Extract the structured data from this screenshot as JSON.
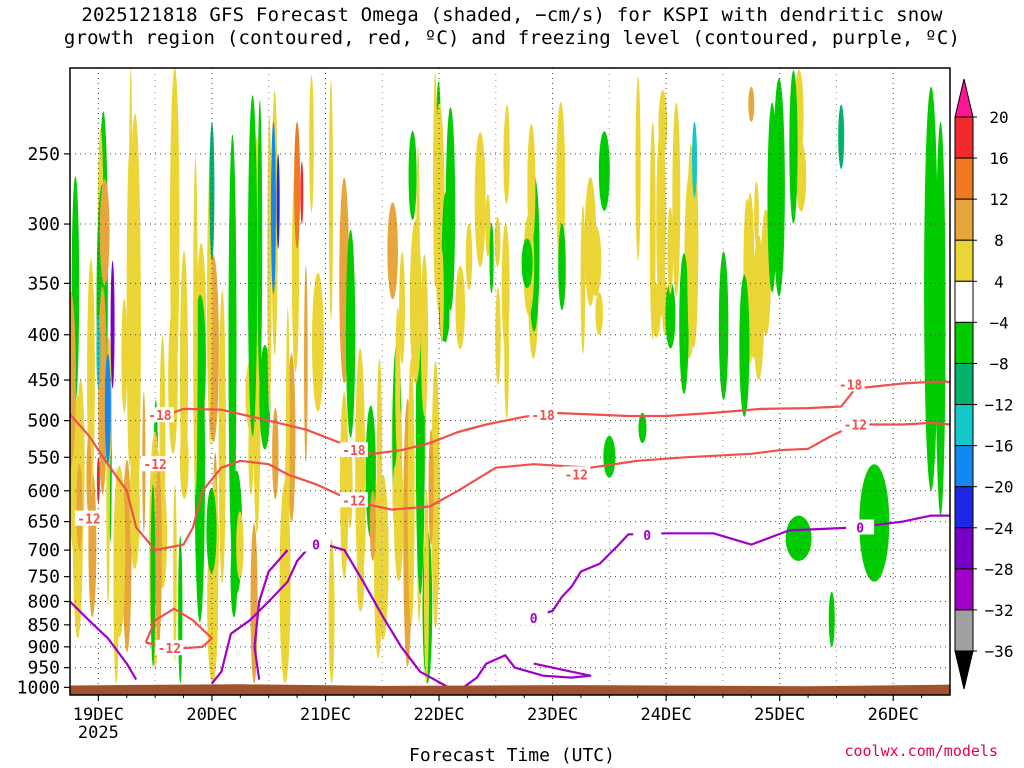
{
  "title_line1": "2025121818 GFS Forecast Omega (shaded, −cm/s) for KSPI with dendritic snow",
  "title_line2": "growth region (contoured, red, ºC) and freezing level (contoured, purple, ºC)",
  "credit": "coolwx.com/models",
  "chart_data": {
    "type": "heatmap",
    "title": "2025121818 GFS Forecast Omega (shaded, −cm/s) for KSPI with dendritic snow growth region (contoured, red, ºC) and freezing level (contoured, purple, ºC)",
    "xlabel": "Forecast Time (UTC)",
    "ylabel": "",
    "x_ticks": [
      "19DEC",
      "20DEC",
      "21DEC",
      "22DEC",
      "23DEC",
      "24DEC",
      "25DEC",
      "26DEC"
    ],
    "x_year_label": "2025",
    "x_range_hours": [
      -6,
      180
    ],
    "y_ticks": [
      250,
      300,
      350,
      400,
      450,
      500,
      550,
      600,
      650,
      700,
      750,
      800,
      850,
      900,
      950,
      1000
    ],
    "y_range_hPa": [
      200,
      1020
    ],
    "colorbar": {
      "labels": [
        20,
        16,
        12,
        8,
        4,
        -4,
        -8,
        -12,
        -16,
        -20,
        -24,
        -28,
        -32,
        -36
      ],
      "colors": [
        "#ff1493",
        "#f02a2a",
        "#ef7a23",
        "#e6a63c",
        "#ebd536",
        "#ffffff",
        "#00cc00",
        "#00b16c",
        "#14c8c8",
        "#1488f0",
        "#1e28e6",
        "#7800c8",
        "#a000c8",
        "#a0a0a0",
        "#000000"
      ]
    },
    "contours": {
      "red_label_values": [
        -18,
        -12
      ],
      "purple_label_value": 0,
      "red_color": "#f0504a",
      "purple_color": "#a000c8"
    },
    "terrain_color": "#a0522d"
  }
}
